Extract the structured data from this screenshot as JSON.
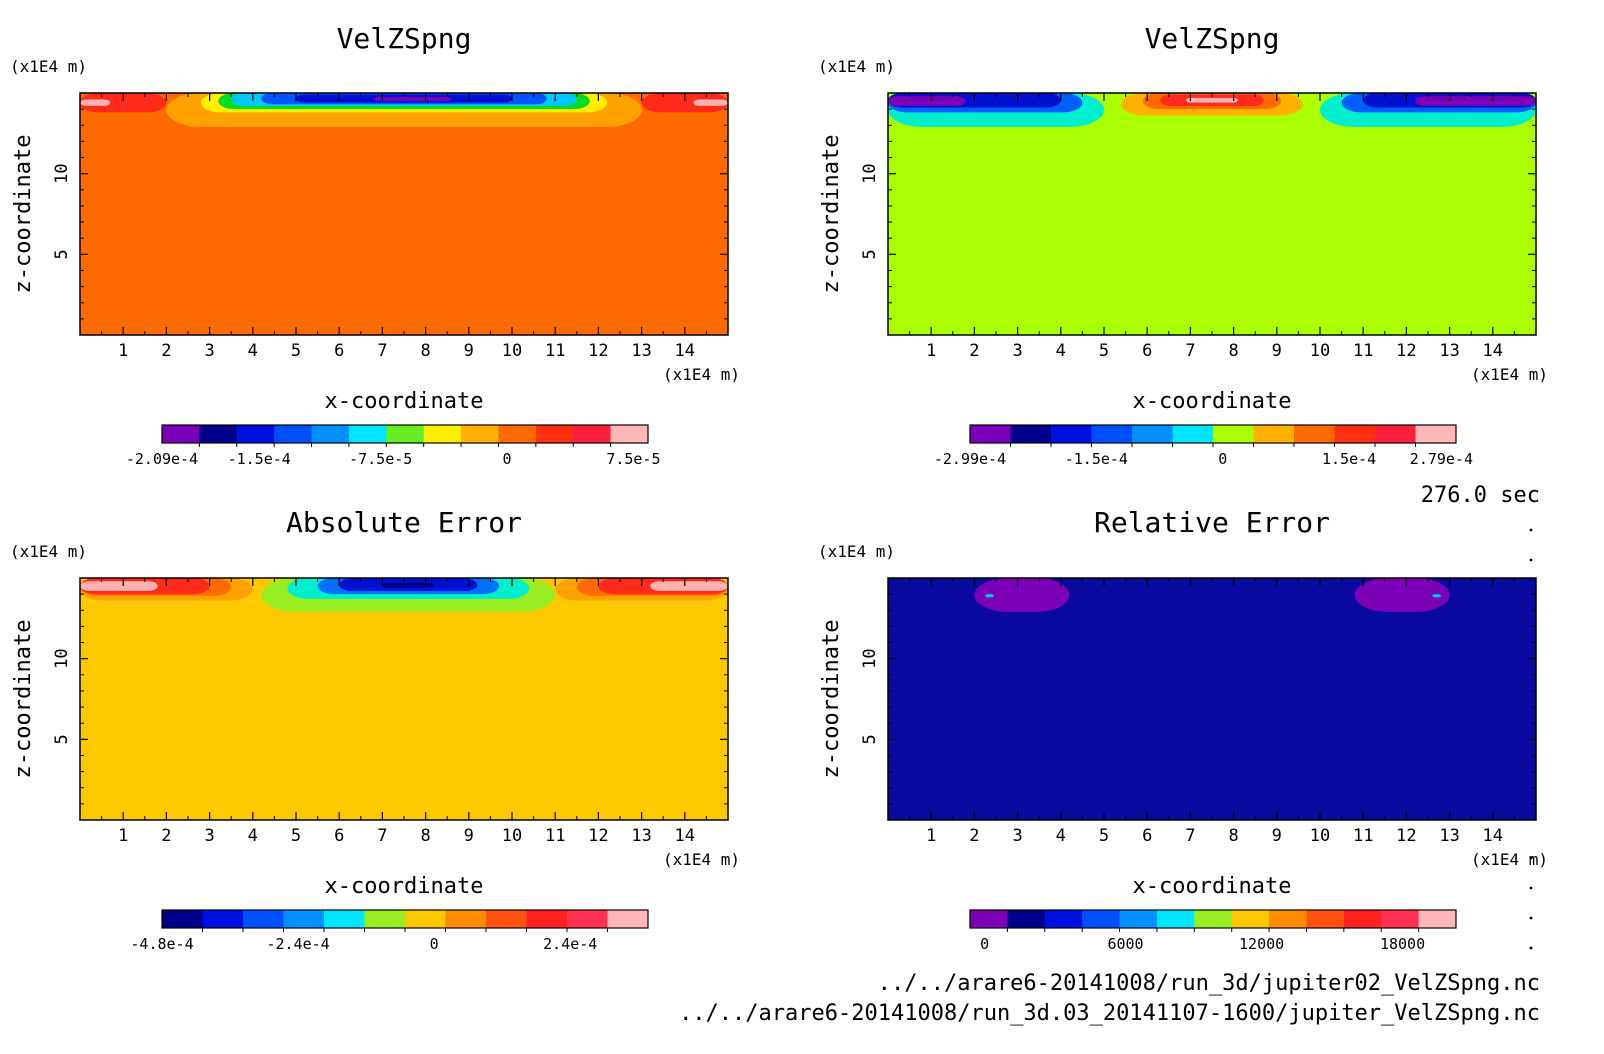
{
  "time_label": "276.0 sec",
  "files": [
    "../../arare6-20141008/run_3d/jupiter02_VelZSpng.nc",
    "../../arare6-20141008/run_3d.03_20141107-1600/jupiter_VelZSpng.nc"
  ],
  "chart_data": [
    {
      "type": "heatmap",
      "title": "VelZSpng",
      "xlabel": "x-coordinate",
      "ylabel": "z-coordinate",
      "x_unit": "(x1E4 m)",
      "y_unit": "(x1E4 m)",
      "xlim": [
        0,
        15
      ],
      "ylim": [
        0,
        15
      ],
      "xticks": [
        1,
        2,
        3,
        4,
        5,
        6,
        7,
        8,
        9,
        10,
        11,
        12,
        13,
        14
      ],
      "yticks": [
        5,
        10
      ],
      "background_color": "#ff6a00",
      "features": [
        {
          "x0": 0,
          "x1": 2.0,
          "z0": 13.8,
          "z1": 15,
          "color": "#ff2b1a"
        },
        {
          "x0": 0,
          "x1": 0.7,
          "z0": 14.2,
          "z1": 14.6,
          "color": "#ffb0b0"
        },
        {
          "x0": 13.0,
          "x1": 15,
          "z0": 13.8,
          "z1": 15,
          "color": "#ff2b1a"
        },
        {
          "x0": 14.2,
          "x1": 15,
          "z0": 14.2,
          "z1": 14.6,
          "color": "#ffb0b0"
        },
        {
          "x0": 2.0,
          "x1": 13.0,
          "z0": 12.9,
          "z1": 15,
          "color": "#ffa200"
        },
        {
          "x0": 2.8,
          "x1": 12.2,
          "z0": 13.8,
          "z1": 15,
          "color": "#ffee00"
        },
        {
          "x0": 3.2,
          "x1": 11.8,
          "z0": 14.0,
          "z1": 15,
          "color": "#00dd22"
        },
        {
          "x0": 3.5,
          "x1": 11.5,
          "z0": 14.2,
          "z1": 15,
          "color": "#00c8ff"
        },
        {
          "x0": 4.2,
          "x1": 10.8,
          "z0": 14.3,
          "z1": 15,
          "color": "#0055ff"
        },
        {
          "x0": 5.0,
          "x1": 10.0,
          "z0": 14.4,
          "z1": 14.9,
          "color": "#0010d0"
        },
        {
          "x0": 6.8,
          "x1": 8.6,
          "z0": 14.5,
          "z1": 14.75,
          "color": "#7b00b8"
        }
      ],
      "colorbar": {
        "colors": [
          "#7b00b8",
          "#00008b",
          "#0010e0",
          "#0050ff",
          "#0090ff",
          "#00e5ff",
          "#66ee22",
          "#ffee00",
          "#ffb000",
          "#ff6a00",
          "#ff3010",
          "#ff2040",
          "#ffb6b6"
        ],
        "tick_labels": [
          "-2.09e-4",
          "-1.5e-4",
          "-7.5e-5",
          "0",
          "7.5e-5"
        ],
        "tick_fractions": [
          0.0,
          0.2,
          0.45,
          0.71,
          0.97
        ]
      }
    },
    {
      "type": "heatmap",
      "title": "VelZSpng",
      "xlabel": "x-coordinate",
      "ylabel": "z-coordinate",
      "x_unit": "(x1E4 m)",
      "y_unit": "(x1E4 m)",
      "xlim": [
        0,
        15
      ],
      "ylim": [
        0,
        15
      ],
      "xticks": [
        1,
        2,
        3,
        4,
        5,
        6,
        7,
        8,
        9,
        10,
        11,
        12,
        13,
        14
      ],
      "yticks": [
        5,
        10
      ],
      "background_color": "#aaff00",
      "features": [
        {
          "x0": 0,
          "x1": 5.0,
          "z0": 12.9,
          "z1": 15,
          "color": "#00eecc"
        },
        {
          "x0": 0,
          "x1": 4.5,
          "z0": 13.8,
          "z1": 15,
          "color": "#0060ff"
        },
        {
          "x0": 0,
          "x1": 4.0,
          "z0": 14.1,
          "z1": 15,
          "color": "#0010d0"
        },
        {
          "x0": 0,
          "x1": 1.8,
          "z0": 14.2,
          "z1": 14.8,
          "color": "#7b00b8"
        },
        {
          "x0": 10.0,
          "x1": 15,
          "z0": 12.9,
          "z1": 15,
          "color": "#00eecc"
        },
        {
          "x0": 10.5,
          "x1": 15,
          "z0": 13.8,
          "z1": 15,
          "color": "#0060ff"
        },
        {
          "x0": 11.0,
          "x1": 15,
          "z0": 14.1,
          "z1": 15,
          "color": "#0010d0"
        },
        {
          "x0": 12.2,
          "x1": 15,
          "z0": 14.2,
          "z1": 14.8,
          "color": "#7b00b8"
        },
        {
          "x0": 5.4,
          "x1": 9.6,
          "z0": 13.6,
          "z1": 15,
          "color": "#ffb000"
        },
        {
          "x0": 5.9,
          "x1": 9.1,
          "z0": 14.0,
          "z1": 15,
          "color": "#ff6a00"
        },
        {
          "x0": 6.3,
          "x1": 8.7,
          "z0": 14.2,
          "z1": 14.9,
          "color": "#ff2b1a"
        },
        {
          "x0": 6.9,
          "x1": 8.1,
          "z0": 14.4,
          "z1": 14.7,
          "color": "#ffb0b0"
        }
      ],
      "colorbar": {
        "colors": [
          "#7b00b8",
          "#00008b",
          "#0010e0",
          "#0050ff",
          "#0090ff",
          "#00e5ff",
          "#aaff00",
          "#ffb000",
          "#ff6a00",
          "#ff3010",
          "#ff2040",
          "#ffb6b6"
        ],
        "tick_labels": [
          "-2.99e-4",
          "-1.5e-4",
          "0",
          "1.5e-4",
          "2.79e-4"
        ],
        "tick_fractions": [
          0.0,
          0.26,
          0.52,
          0.78,
          0.97
        ]
      }
    },
    {
      "type": "heatmap",
      "title": "Absolute Error",
      "xlabel": "x-coordinate",
      "ylabel": "z-coordinate",
      "x_unit": "(x1E4 m)",
      "y_unit": "(x1E4 m)",
      "xlim": [
        0,
        15
      ],
      "ylim": [
        0,
        15
      ],
      "xticks": [
        1,
        2,
        3,
        4,
        5,
        6,
        7,
        8,
        9,
        10,
        11,
        12,
        13,
        14
      ],
      "yticks": [
        5,
        10
      ],
      "background_color": "#ffc800",
      "features": [
        {
          "x0": 0,
          "x1": 4.0,
          "z0": 13.6,
          "z1": 15,
          "color": "#ffa200"
        },
        {
          "x0": 0,
          "x1": 3.5,
          "z0": 13.9,
          "z1": 15,
          "color": "#ff6a00"
        },
        {
          "x0": 0,
          "x1": 3.0,
          "z0": 14.0,
          "z1": 15,
          "color": "#ff2b1a"
        },
        {
          "x0": 0,
          "x1": 1.8,
          "z0": 14.2,
          "z1": 14.8,
          "color": "#ffb0b0"
        },
        {
          "x0": 11.0,
          "x1": 15,
          "z0": 13.6,
          "z1": 15,
          "color": "#ffa200"
        },
        {
          "x0": 11.5,
          "x1": 15,
          "z0": 13.9,
          "z1": 15,
          "color": "#ff6a00"
        },
        {
          "x0": 12.0,
          "x1": 15,
          "z0": 14.0,
          "z1": 15,
          "color": "#ff2b1a"
        },
        {
          "x0": 13.2,
          "x1": 15,
          "z0": 14.2,
          "z1": 14.8,
          "color": "#ffb0b0"
        },
        {
          "x0": 4.2,
          "x1": 11.0,
          "z0": 12.9,
          "z1": 15,
          "color": "#99ee22"
        },
        {
          "x0": 4.8,
          "x1": 10.4,
          "z0": 13.7,
          "z1": 15,
          "color": "#00eecc"
        },
        {
          "x0": 5.5,
          "x1": 9.7,
          "z0": 14.0,
          "z1": 15,
          "color": "#0070ff"
        },
        {
          "x0": 6.0,
          "x1": 9.2,
          "z0": 14.2,
          "z1": 14.95,
          "color": "#0010d0"
        },
        {
          "x0": 7.0,
          "x1": 8.2,
          "z0": 14.4,
          "z1": 14.7,
          "color": "#00008b"
        }
      ],
      "colorbar": {
        "colors": [
          "#00008b",
          "#0010e0",
          "#0050ff",
          "#0090ff",
          "#00e5ff",
          "#99ee22",
          "#ffc800",
          "#ff8c00",
          "#ff5010",
          "#ff2020",
          "#ff3050",
          "#ffb6b6"
        ],
        "tick_labels": [
          "-4.8e-4",
          "-2.4e-4",
          "0",
          "2.4e-4"
        ],
        "tick_fractions": [
          0.0,
          0.28,
          0.56,
          0.84
        ]
      }
    },
    {
      "type": "heatmap",
      "title": "Relative Error",
      "xlabel": "x-coordinate",
      "ylabel": "z-coordinate",
      "x_unit": "(x1E4 m)",
      "y_unit": "(x1E4 m)",
      "xlim": [
        0,
        15
      ],
      "ylim": [
        0,
        15
      ],
      "xticks": [
        1,
        2,
        3,
        4,
        5,
        6,
        7,
        8,
        9,
        10,
        11,
        12,
        13,
        14
      ],
      "yticks": [
        5,
        10
      ],
      "background_color": "#0a0aa0",
      "features": [
        {
          "x0": 2.0,
          "x1": 4.2,
          "z0": 12.9,
          "z1": 15,
          "color": "#7b00b8"
        },
        {
          "x0": 10.8,
          "x1": 13.0,
          "z0": 12.9,
          "z1": 15,
          "color": "#7b00b8"
        },
        {
          "x0": 2.25,
          "x1": 2.45,
          "z0": 13.8,
          "z1": 14.0,
          "color": "#00c8ff"
        },
        {
          "x0": 12.6,
          "x1": 12.8,
          "z0": 13.8,
          "z1": 14.0,
          "color": "#00c8ff"
        }
      ],
      "colorbar": {
        "colors": [
          "#7b00b8",
          "#00008b",
          "#0010e0",
          "#0050ff",
          "#0090ff",
          "#00e5ff",
          "#99ee22",
          "#ffc800",
          "#ff8c00",
          "#ff5010",
          "#ff2020",
          "#ff3050",
          "#ffb6b6"
        ],
        "tick_labels": [
          "0",
          "6000",
          "12000",
          "18000"
        ],
        "tick_fractions": [
          0.03,
          0.32,
          0.6,
          0.89
        ]
      }
    }
  ]
}
